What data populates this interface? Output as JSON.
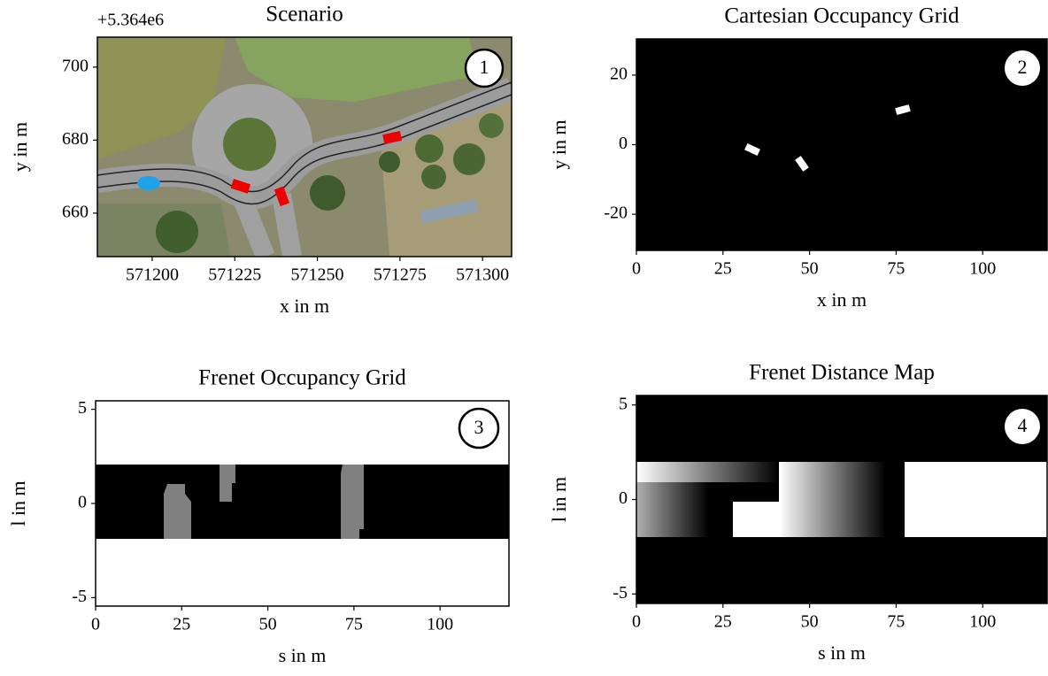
{
  "chart_data": [
    {
      "type": "image",
      "title": "Scenario",
      "xlabel": "x in m",
      "ylabel": "y in m",
      "offset_text": "+5.364e6",
      "annotation": "1",
      "xlim": [
        571183.4,
        571308.8
      ],
      "xticks": [
        571200,
        571225,
        571250,
        571275,
        571300
      ],
      "ylim": [
        648.1,
        708.2
      ],
      "yticks": [
        660,
        680,
        700
      ]
    },
    {
      "type": "image",
      "title": "Cartesian Occupancy Grid",
      "xlabel": "x in m",
      "ylabel": "y in m",
      "annotation": "2",
      "xlim": [
        0,
        118.6
      ],
      "xticks": [
        0,
        25,
        50,
        75,
        100
      ],
      "ylim": [
        -30.4,
        30.4
      ],
      "yticks": [
        -20,
        0,
        20
      ]
    },
    {
      "type": "image",
      "title": "Frenet Occupancy Grid",
      "xlabel": "s in m",
      "ylabel": "l in m",
      "annotation": "3",
      "xlim": [
        0,
        120
      ],
      "xticks": [
        0,
        25,
        50,
        75,
        100
      ],
      "ylim": [
        -5.45,
        5.45
      ],
      "yticks": [
        -5,
        0,
        5
      ]
    },
    {
      "type": "image",
      "title": "Frenet Distance Map",
      "xlabel": "s in m",
      "ylabel": "l in m",
      "annotation": "4",
      "xlim": [
        0,
        118.6
      ],
      "xticks": [
        0,
        25,
        50,
        75,
        100
      ],
      "ylim": [
        -5.5,
        5.5
      ],
      "yticks": [
        -5,
        0,
        5
      ]
    }
  ]
}
